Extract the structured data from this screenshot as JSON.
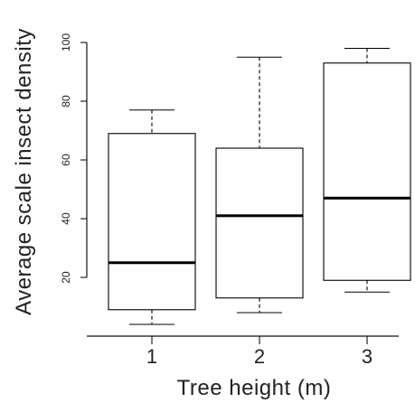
{
  "chart_data": {
    "type": "boxplot",
    "categories": [
      "1",
      "2",
      "3"
    ],
    "boxes": [
      {
        "min": 4,
        "q1": 9,
        "median": 25,
        "q3": 69,
        "max": 77
      },
      {
        "min": 8,
        "q1": 13,
        "median": 41,
        "q3": 64,
        "max": 95
      },
      {
        "min": 15,
        "q1": 19,
        "median": 47,
        "q3": 93,
        "max": 98
      }
    ],
    "xlabel": "Tree height (m)",
    "ylabel": "Average scale insect density",
    "yticks": [
      "20",
      "40",
      "60",
      "80",
      "100"
    ],
    "ylim": [
      0,
      100
    ],
    "grid": false,
    "colors": {
      "box_fill": "#ffffff",
      "box_stroke": "#000000",
      "axis": "#111111",
      "text": "#222222"
    }
  }
}
